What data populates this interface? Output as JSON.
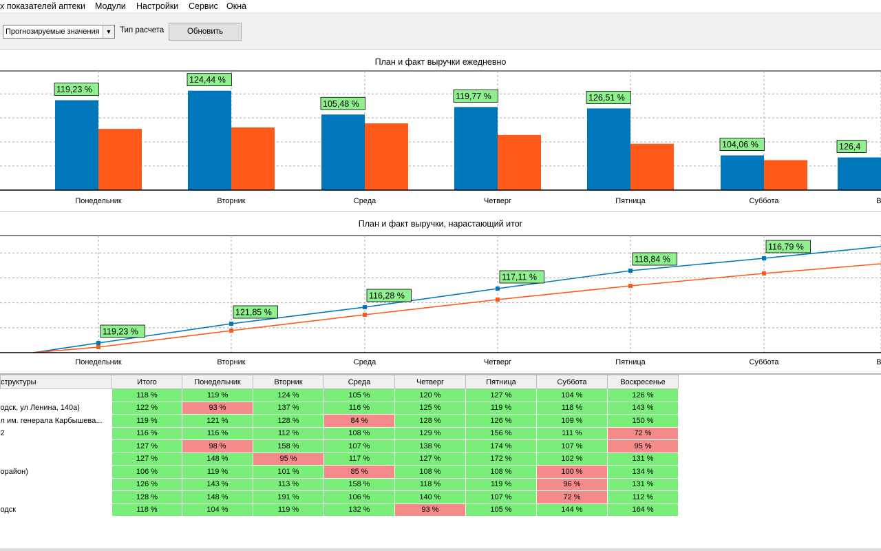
{
  "menu": [
    "х показателей аптеки",
    "Модули",
    "Настройки",
    "Сервис",
    "Окна"
  ],
  "toolbar": {
    "mode_value": "Прогнозируемые значения",
    "calc_type_label": "Тип расчета",
    "refresh_label": "Обновить"
  },
  "colors": {
    "plan": "#0077bb",
    "fact": "#ff5a1a",
    "ok": "#79ef79",
    "bad": "#f48a8a",
    "label_bg": "#90f090"
  },
  "chart_data": [
    {
      "type": "bar",
      "title": "План и факт выручки ежедневно",
      "categories": [
        "Понедельник",
        "Вторник",
        "Среда",
        "Четверг",
        "Пятница",
        "Суббота",
        "Во"
      ],
      "series": [
        {
          "values": [
            132,
            146,
            111,
            122,
            120,
            51,
            48
          ]
        },
        {
          "values": [
            90,
            92,
            98,
            81,
            68,
            44,
            0
          ]
        }
      ],
      "data_labels": [
        "119,23 %",
        "124,44 %",
        "105,48 %",
        "119,77 %",
        "126,51 %",
        "104,06 %",
        "126,4"
      ],
      "ylim": [
        0,
        175
      ],
      "grid": true
    },
    {
      "type": "line",
      "title": "План и факт выручки, нарастающий итог",
      "categories": [
        "Понедельник",
        "Вторник",
        "Среда",
        "Четверг",
        "Пятница",
        "Суббота",
        "Во"
      ],
      "series": [
        {
          "values": [
            14,
            42,
            66,
            93,
            119,
            137,
            154
          ]
        },
        {
          "values": [
            8,
            32,
            55,
            77,
            97,
            115,
            129
          ]
        }
      ],
      "data_labels": [
        "119,23 %",
        "121,85 %",
        "116,28 %",
        "117,11 %",
        "118,84 %",
        "116,79 %"
      ],
      "ylim": [
        0,
        170
      ],
      "grid": true
    }
  ],
  "table": {
    "columns": [
      "структуры",
      "Итого",
      "Понедельник",
      "Вторник",
      "Среда",
      "Четверг",
      "Пятница",
      "Суббота",
      "Воскресенье"
    ],
    "rows": [
      {
        "name": "",
        "cells": [
          "118 %",
          "119 %",
          "124 %",
          "105 %",
          "120 %",
          "127 %",
          "104 %",
          "126 %"
        ],
        "bad": []
      },
      {
        "name": "одск, ул Ленина, 140а)",
        "cells": [
          "122 %",
          "93 %",
          "137 %",
          "116 %",
          "125 %",
          "119 %",
          "118 %",
          "143 %"
        ],
        "bad": [
          1
        ]
      },
      {
        "name": "л им. генерала Карбышева...",
        "cells": [
          "119 %",
          "121 %",
          "128 %",
          "84 %",
          "128 %",
          "126 %",
          "109 %",
          "150 %"
        ],
        "bad": [
          3
        ]
      },
      {
        "name": "2",
        "cells": [
          "116 %",
          "116 %",
          "112 %",
          "108 %",
          "129 %",
          "156 %",
          "111 %",
          "72 %"
        ],
        "bad": [
          7
        ]
      },
      {
        "name": "",
        "cells": [
          "127 %",
          "98 %",
          "158 %",
          "107 %",
          "138 %",
          "174 %",
          "107 %",
          "95 %"
        ],
        "bad": [
          1,
          7
        ]
      },
      {
        "name": "",
        "cells": [
          "127 %",
          "148 %",
          "95 %",
          "117 %",
          "127 %",
          "172 %",
          "102 %",
          "131 %"
        ],
        "bad": [
          2
        ]
      },
      {
        "name": "орайон)",
        "cells": [
          "106 %",
          "119 %",
          "101 %",
          "85 %",
          "108 %",
          "108 %",
          "100 %",
          "134 %"
        ],
        "bad": [
          3,
          6
        ]
      },
      {
        "name": "",
        "cells": [
          "126 %",
          "143 %",
          "113 %",
          "158 %",
          "118 %",
          "119 %",
          "96 %",
          "131 %"
        ],
        "bad": [
          6
        ]
      },
      {
        "name": "",
        "cells": [
          "128 %",
          "148 %",
          "191 %",
          "106 %",
          "140 %",
          "107 %",
          "72 %",
          "112 %"
        ],
        "bad": [
          6
        ]
      },
      {
        "name": "одск",
        "cells": [
          "118 %",
          "104 %",
          "119 %",
          "132 %",
          "93 %",
          "105 %",
          "144 %",
          "164 %"
        ],
        "bad": [
          4
        ]
      }
    ]
  }
}
